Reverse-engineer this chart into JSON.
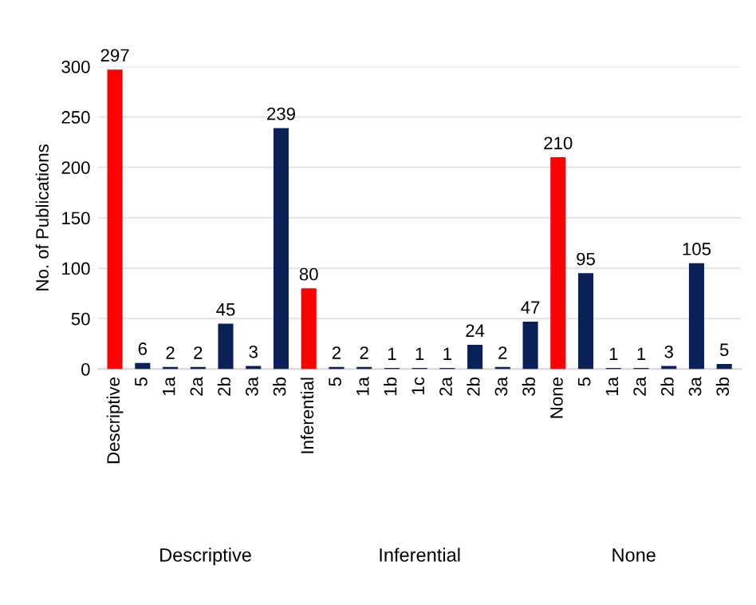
{
  "chart_data": {
    "type": "bar",
    "ylabel": "No. of Publications",
    "categories": [
      "Descriptive",
      "5",
      "1a",
      "2a",
      "2b",
      "3a",
      "3b",
      "Inferential",
      "5",
      "1a",
      "1b",
      "1c",
      "2a",
      "2b",
      "3a",
      "3b",
      "None",
      "5",
      "1a",
      "2a",
      "2b",
      "3a",
      "3b"
    ],
    "values": [
      297,
      6,
      2,
      2,
      45,
      3,
      239,
      80,
      2,
      2,
      1,
      1,
      1,
      24,
      2,
      47,
      210,
      95,
      1,
      1,
      3,
      105,
      5
    ],
    "colors": [
      "#ff0000",
      "#0a2158",
      "#0a2158",
      "#0a2158",
      "#0a2158",
      "#0a2158",
      "#0a2158",
      "#ff0000",
      "#0a2158",
      "#0a2158",
      "#0a2158",
      "#0a2158",
      "#0a2158",
      "#0a2158",
      "#0a2158",
      "#0a2158",
      "#ff0000",
      "#0a2158",
      "#0a2158",
      "#0a2158",
      "#0a2158",
      "#0a2158",
      "#0a2158"
    ],
    "ylim": [
      0,
      300
    ],
    "yticks": [
      0,
      50,
      100,
      150,
      200,
      250,
      300
    ],
    "grid": "y",
    "data_labels": true,
    "annotations": [
      "Descriptive",
      "Inferential",
      "None"
    ]
  }
}
